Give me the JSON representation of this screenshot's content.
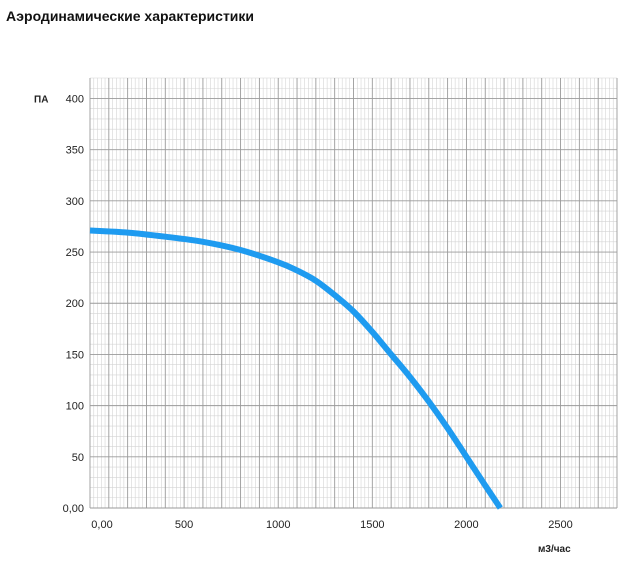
{
  "title": "Аэродинамические характеристики",
  "chart_data": {
    "type": "line",
    "ylabel": "ПА",
    "xlabel": "м3/час",
    "xlim": [
      0,
      2800
    ],
    "ylim": [
      0,
      420
    ],
    "x_ticks": [
      {
        "value": 0,
        "label": "0,00"
      },
      {
        "value": 500,
        "label": "500"
      },
      {
        "value": 1000,
        "label": "1000"
      },
      {
        "value": 1500,
        "label": "1500"
      },
      {
        "value": 2000,
        "label": "2000"
      },
      {
        "value": 2500,
        "label": "2500"
      }
    ],
    "y_ticks": [
      {
        "value": 0,
        "label": "0,00"
      },
      {
        "value": 50,
        "label": "50"
      },
      {
        "value": 100,
        "label": "100"
      },
      {
        "value": 150,
        "label": "150"
      },
      {
        "value": 200,
        "label": "200"
      },
      {
        "value": 250,
        "label": "250"
      },
      {
        "value": 300,
        "label": "300"
      },
      {
        "value": 350,
        "label": "350"
      },
      {
        "value": 400,
        "label": "400"
      }
    ],
    "grid": true,
    "series": [
      {
        "color": "#1e9bf0",
        "x": [
          0,
          200,
          400,
          600,
          800,
          1000,
          1100,
          1200,
          1300,
          1400,
          1500,
          1600,
          1700,
          1800,
          1900,
          2000,
          2100,
          2180
        ],
        "y": [
          271,
          269,
          265,
          260,
          252,
          240,
          232,
          222,
          208,
          192,
          172,
          150,
          128,
          104,
          78,
          50,
          22,
          0
        ]
      }
    ]
  }
}
